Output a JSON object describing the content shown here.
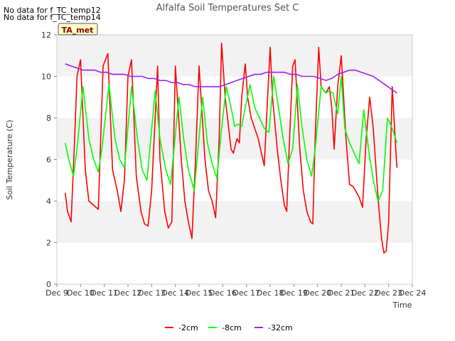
{
  "no_data_messages": [
    "No data for f_TC_temp12",
    "No data for f_TC_temp14"
  ],
  "site_tag": "TA_met",
  "chart_data": {
    "type": "line",
    "title": "Alfalfa Soil Temperatures Set C",
    "xlabel": "Time",
    "ylabel": "Soil Temperature (C)",
    "xlim": [
      9,
      24
    ],
    "ylim": [
      0,
      12
    ],
    "x_ticks": [
      9,
      10,
      11,
      12,
      13,
      14,
      15,
      16,
      17,
      18,
      19,
      20,
      21,
      22,
      23,
      24
    ],
    "x_tick_labels": [
      "Dec 9",
      "Dec 10",
      "Dec 11",
      "Dec 12",
      "Dec 13",
      "Dec 14",
      "Dec 15",
      "Dec 16",
      "Dec 17",
      "Dec 18",
      "Dec 19",
      "Dec 20",
      "Dec 21",
      "Dec 22",
      "Dec 23",
      "Dec 24"
    ],
    "y_ticks": [
      0,
      2,
      4,
      6,
      8,
      10,
      12
    ],
    "y_tick_labels": [
      "0",
      "2",
      "4",
      "6",
      "8",
      "10",
      "12"
    ],
    "grid": "horizontal bands",
    "legend_position": "bottom-center",
    "series": [
      {
        "name": "-2cm",
        "color": "#ff0000",
        "x": [
          9.35,
          9.45,
          9.6,
          9.75,
          9.85,
          10.0,
          10.2,
          10.35,
          10.55,
          10.75,
          10.95,
          11.15,
          11.35,
          11.55,
          11.7,
          11.85,
          12.0,
          12.15,
          12.35,
          12.55,
          12.7,
          12.85,
          13.0,
          13.25,
          13.35,
          13.55,
          13.7,
          13.85,
          14.0,
          14.25,
          14.4,
          14.55,
          14.7,
          14.85,
          15.0,
          15.25,
          15.4,
          15.55,
          15.7,
          15.85,
          15.95,
          16.1,
          16.25,
          16.35,
          16.45,
          16.6,
          16.7,
          16.8,
          16.95,
          17.05,
          17.2,
          17.35,
          17.5,
          17.65,
          17.75,
          17.85,
          18.0,
          18.1,
          18.3,
          18.45,
          18.6,
          18.7,
          18.8,
          18.95,
          19.05,
          19.25,
          19.4,
          19.55,
          19.7,
          19.8,
          19.9,
          20.05,
          20.15,
          20.35,
          20.5,
          20.6,
          20.7,
          20.85,
          21.0,
          21.2,
          21.35,
          21.5,
          21.6,
          21.75,
          21.9,
          22.05,
          22.2,
          22.35,
          22.5,
          22.6,
          22.7,
          22.8,
          22.9,
          23.0,
          23.15,
          23.3,
          23.35
        ],
        "y": [
          4.4,
          3.5,
          3.0,
          7.0,
          10.0,
          10.8,
          5.5,
          4.0,
          3.8,
          3.6,
          10.5,
          11.1,
          5.5,
          4.5,
          3.5,
          5.0,
          10.0,
          10.8,
          5.2,
          3.5,
          2.9,
          2.8,
          4.5,
          10.5,
          6.0,
          3.5,
          2.7,
          3.0,
          10.5,
          6.0,
          4.0,
          3.0,
          2.2,
          6.0,
          10.5,
          6.0,
          4.5,
          4.0,
          3.2,
          7.0,
          11.6,
          9.0,
          7.5,
          6.5,
          6.3,
          7.0,
          6.8,
          9.0,
          10.6,
          9.0,
          8.0,
          7.5,
          7.0,
          6.2,
          5.7,
          8.0,
          11.4,
          9.0,
          6.5,
          5.0,
          3.8,
          3.5,
          6.5,
          10.5,
          10.8,
          6.5,
          4.5,
          3.5,
          3.0,
          2.9,
          7.0,
          11.4,
          9.5,
          9.2,
          9.5,
          8.5,
          6.5,
          9.5,
          11.0,
          7.0,
          4.8,
          4.7,
          4.5,
          4.2,
          3.7,
          7.0,
          9.0,
          7.5,
          5.0,
          3.5,
          2.2,
          1.5,
          1.6,
          3.0,
          9.5,
          6.5,
          5.6
        ]
      },
      {
        "name": "-8cm",
        "color": "#00ff00",
        "x": [
          9.35,
          9.5,
          9.7,
          9.85,
          10.1,
          10.35,
          10.55,
          10.75,
          10.9,
          11.2,
          11.45,
          11.65,
          11.85,
          12.15,
          12.4,
          12.6,
          12.8,
          13.15,
          13.35,
          13.6,
          13.8,
          14.15,
          14.35,
          14.55,
          14.8,
          15.15,
          15.35,
          15.55,
          15.75,
          15.95,
          16.15,
          16.35,
          16.5,
          16.65,
          16.8,
          16.95,
          17.15,
          17.35,
          17.55,
          17.75,
          17.95,
          18.15,
          18.35,
          18.55,
          18.75,
          18.95,
          19.15,
          19.35,
          19.55,
          19.75,
          19.9,
          20.15,
          20.35,
          20.5,
          20.65,
          20.85,
          21.0,
          21.15,
          21.35,
          21.55,
          21.75,
          21.95,
          22.15,
          22.35,
          22.55,
          22.75,
          22.95,
          23.15,
          23.35
        ],
        "y": [
          6.8,
          6.0,
          5.2,
          6.5,
          9.5,
          7.0,
          6.0,
          5.4,
          6.5,
          9.6,
          7.0,
          6.0,
          5.6,
          9.5,
          7.0,
          5.5,
          5.0,
          9.3,
          7.0,
          5.5,
          4.8,
          9.0,
          7.0,
          5.5,
          4.5,
          9.0,
          6.8,
          5.8,
          5.1,
          7.5,
          9.5,
          8.5,
          7.6,
          7.7,
          7.6,
          8.5,
          9.6,
          8.5,
          8.0,
          7.5,
          7.3,
          10.0,
          8.5,
          7.0,
          5.8,
          6.5,
          9.6,
          7.5,
          6.0,
          5.2,
          6.5,
          9.5,
          9.2,
          9.3,
          9.2,
          8.2,
          10.0,
          7.5,
          6.8,
          6.3,
          5.8,
          8.4,
          6.5,
          5.0,
          4.0,
          4.5,
          8.0,
          7.5,
          6.8
        ]
      },
      {
        "name": "-32cm",
        "color": "#a020f0",
        "x": [
          9.35,
          9.6,
          9.85,
          10.1,
          10.35,
          10.6,
          10.85,
          11.1,
          11.35,
          11.6,
          11.85,
          12.1,
          12.35,
          12.6,
          12.85,
          13.1,
          13.35,
          13.6,
          13.85,
          14.1,
          14.35,
          14.6,
          14.85,
          15.1,
          15.35,
          15.6,
          15.85,
          16.1,
          16.35,
          16.6,
          16.85,
          17.1,
          17.35,
          17.6,
          17.85,
          18.1,
          18.35,
          18.6,
          18.85,
          19.1,
          19.35,
          19.6,
          19.85,
          20.1,
          20.35,
          20.6,
          20.85,
          21.1,
          21.35,
          21.6,
          21.85,
          22.1,
          22.35,
          22.6,
          22.85,
          23.1,
          23.35
        ],
        "y": [
          10.6,
          10.5,
          10.4,
          10.3,
          10.3,
          10.3,
          10.2,
          10.2,
          10.1,
          10.1,
          10.1,
          10.0,
          10.0,
          10.0,
          9.9,
          9.9,
          9.8,
          9.8,
          9.7,
          9.7,
          9.6,
          9.6,
          9.5,
          9.5,
          9.5,
          9.5,
          9.5,
          9.6,
          9.7,
          9.8,
          9.9,
          10.0,
          10.1,
          10.1,
          10.2,
          10.2,
          10.2,
          10.2,
          10.1,
          10.1,
          10.0,
          10.0,
          10.0,
          9.9,
          9.8,
          9.9,
          10.1,
          10.2,
          10.3,
          10.3,
          10.2,
          10.1,
          10.0,
          9.8,
          9.6,
          9.4,
          9.2
        ]
      }
    ]
  }
}
